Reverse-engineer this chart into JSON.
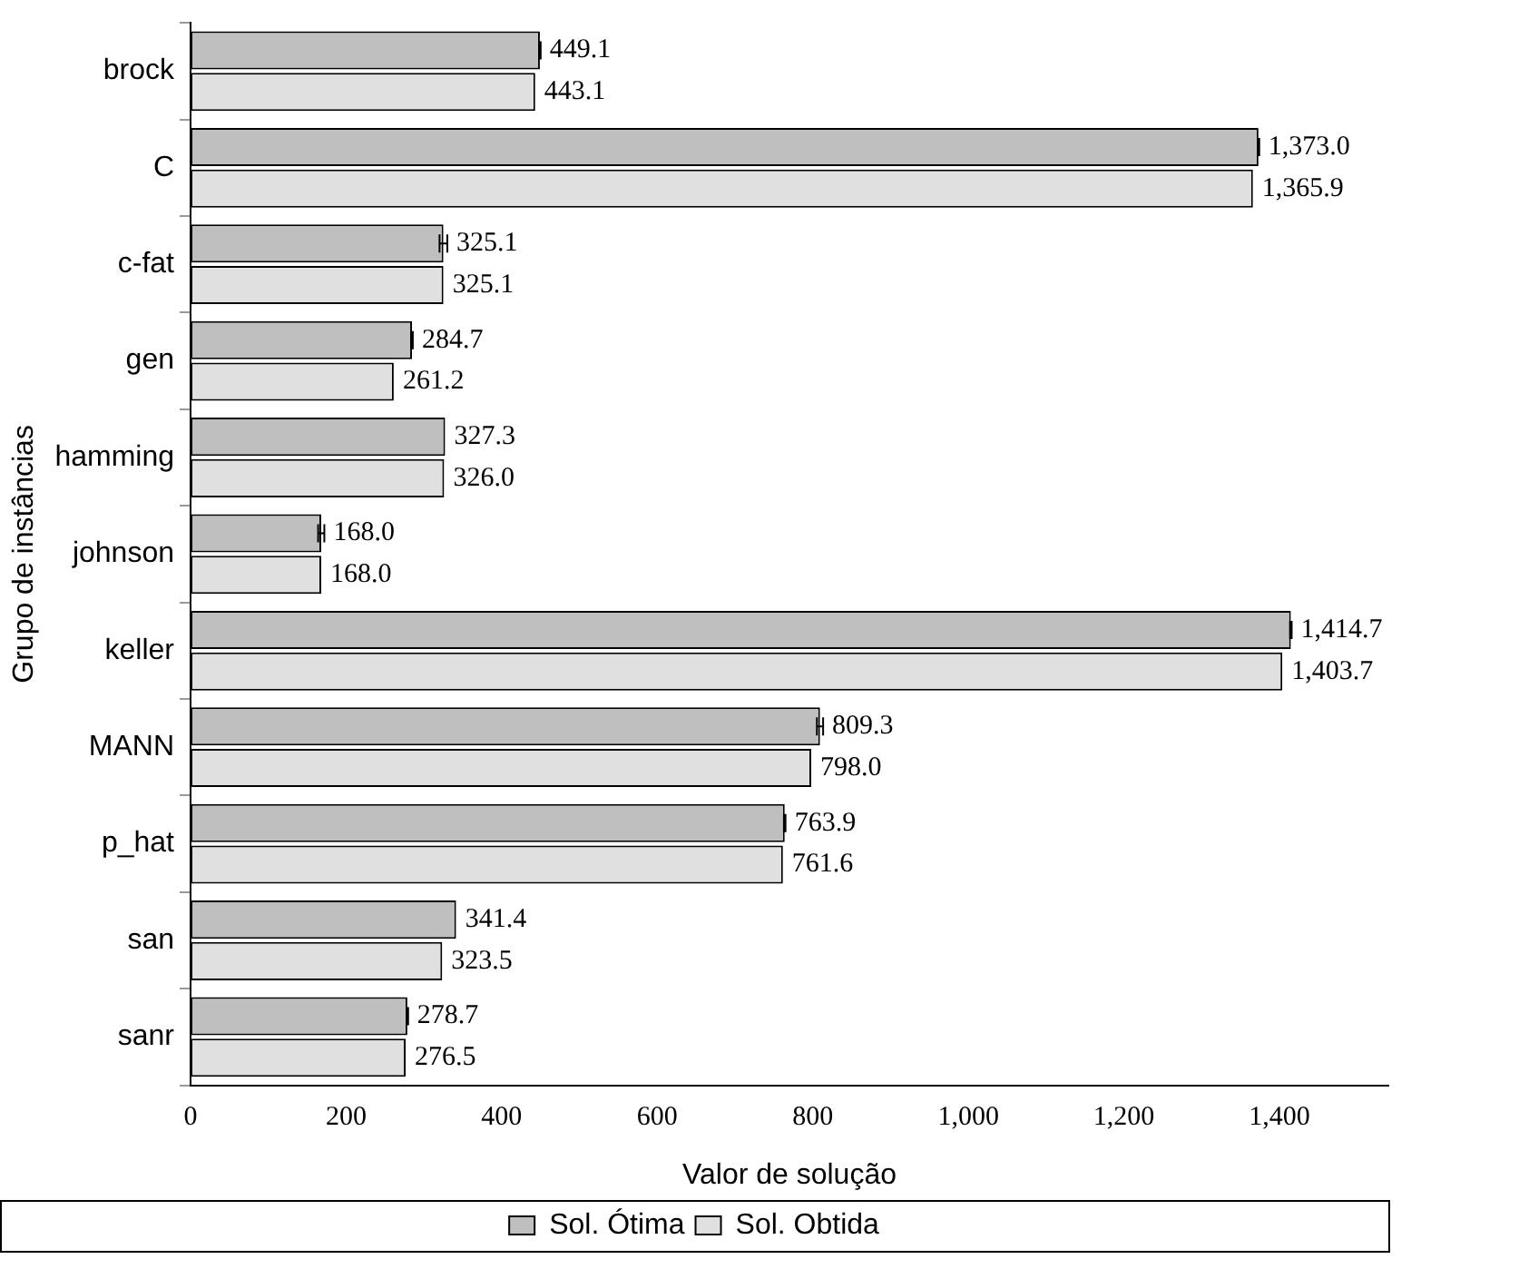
{
  "chart_data": {
    "type": "bar",
    "orientation": "horizontal",
    "xlabel": "Valor de solução",
    "ylabel": "Grupo de instâncias",
    "categories": [
      "brock",
      "C",
      "c-fat",
      "gen",
      "hamming",
      "johnson",
      "keller",
      "MANN",
      "p_hat",
      "san",
      "sanr"
    ],
    "series": [
      {
        "name": "Sol. Ótima",
        "color": "#bfbfbf",
        "values": [
          449.1,
          1373.0,
          325.1,
          284.7,
          327.3,
          168.0,
          1414.7,
          809.3,
          763.9,
          341.4,
          278.7
        ],
        "errors": [
          1,
          1,
          5,
          1,
          null,
          4,
          1,
          4,
          1,
          null,
          1
        ],
        "value_labels": [
          "449.1",
          "1,373.0",
          "325.1",
          "284.7",
          "327.3",
          "168.0",
          "1,414.7",
          "809.3",
          "763.9",
          "341.4",
          "278.7"
        ]
      },
      {
        "name": "Sol. Obtida",
        "color": "#e0e0e0",
        "values": [
          443.1,
          1365.9,
          325.1,
          261.2,
          326.0,
          168.0,
          1403.7,
          798.0,
          761.6,
          323.5,
          276.5
        ],
        "value_labels": [
          "443.1",
          "1,365.9",
          "325.1",
          "261.2",
          "326.0",
          "168.0",
          "1,403.7",
          "798.0",
          "761.6",
          "323.5",
          "276.5"
        ]
      }
    ],
    "xlim": [
      0,
      1540
    ],
    "xticks": [
      0,
      200,
      400,
      600,
      800,
      {
        "value": 1000,
        "label": "1,000"
      },
      {
        "value": 1200,
        "label": "1,200"
      },
      {
        "value": 1400,
        "label": "1,400"
      }
    ],
    "grid": false,
    "legend": "bottom"
  }
}
